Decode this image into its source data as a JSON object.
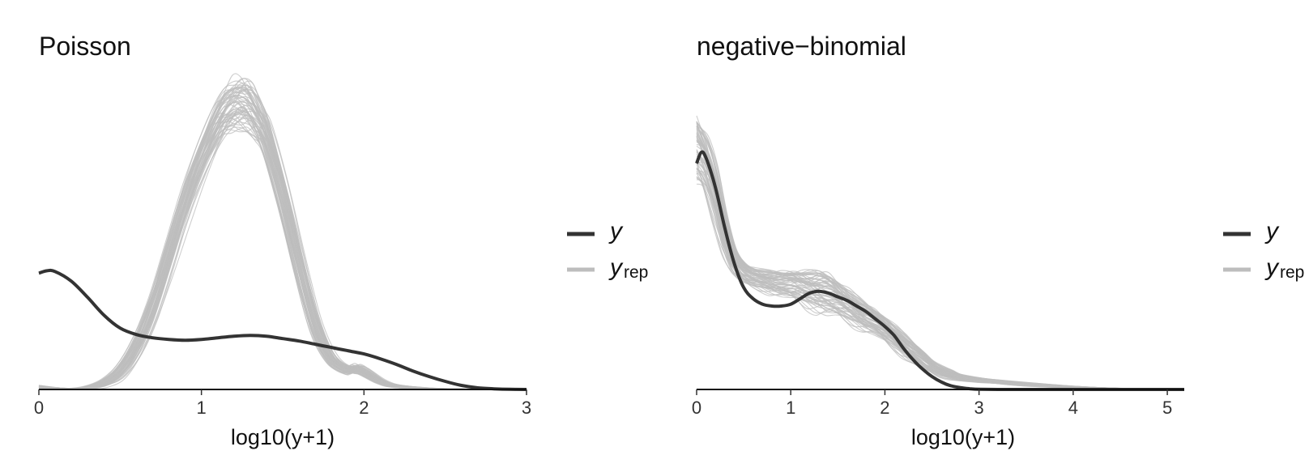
{
  "figure": {
    "legend": {
      "y_label": "y",
      "yrep_label": "y",
      "yrep_sub": "rep",
      "y_color": "#333333",
      "yrep_color": "#bdbdbd"
    }
  },
  "chart_data": [
    {
      "type": "line",
      "title": "Poisson",
      "xlabel": "log10(y+1)",
      "ylabel": "",
      "xlim": [
        0,
        3
      ],
      "ylim": [
        0,
        1.95
      ],
      "xticks": [
        0,
        1,
        2,
        3
      ],
      "xtick_labels": [
        "0",
        "1",
        "2",
        "3"
      ],
      "grid": false,
      "legend_position": "right",
      "series": [
        {
          "name": "y",
          "color": "#333333",
          "x": [
            0,
            0.05,
            0.1,
            0.2,
            0.3,
            0.4,
            0.5,
            0.6,
            0.7,
            0.8,
            0.9,
            1.0,
            1.1,
            1.2,
            1.3,
            1.4,
            1.5,
            1.6,
            1.7,
            1.8,
            1.9,
            2.0,
            2.1,
            2.2,
            2.3,
            2.4,
            2.5,
            2.6,
            2.7,
            2.8,
            2.9,
            3.0
          ],
          "y": [
            0.72,
            0.735,
            0.73,
            0.67,
            0.57,
            0.46,
            0.38,
            0.34,
            0.32,
            0.31,
            0.305,
            0.31,
            0.32,
            0.33,
            0.335,
            0.33,
            0.315,
            0.3,
            0.28,
            0.26,
            0.24,
            0.22,
            0.19,
            0.155,
            0.115,
            0.08,
            0.05,
            0.025,
            0.01,
            0.004,
            0.001,
            0.0
          ]
        }
      ],
      "replicates": {
        "name": "y_rep",
        "color": "#bdbdbd",
        "count": 60,
        "x": [
          0,
          0.1,
          0.2,
          0.3,
          0.4,
          0.5,
          0.6,
          0.7,
          0.8,
          0.9,
          1.0,
          1.1,
          1.15,
          1.2,
          1.25,
          1.3,
          1.35,
          1.4,
          1.5,
          1.6,
          1.7,
          1.8,
          1.9,
          1.95,
          2.0,
          2.1,
          2.2,
          2.4,
          2.6,
          2.8,
          3.0
        ],
        "y_mean": [
          0.015,
          0.006,
          0.003,
          0.01,
          0.04,
          0.11,
          0.26,
          0.5,
          0.82,
          1.15,
          1.42,
          1.64,
          1.72,
          1.76,
          1.77,
          1.74,
          1.66,
          1.56,
          1.2,
          0.78,
          0.4,
          0.19,
          0.12,
          0.13,
          0.11,
          0.05,
          0.02,
          0.006,
          0.002,
          0.0,
          0.0
        ],
        "y_spread": [
          0.01,
          0.005,
          0.004,
          0.01,
          0.02,
          0.04,
          0.06,
          0.08,
          0.09,
          0.1,
          0.11,
          0.13,
          0.14,
          0.15,
          0.15,
          0.14,
          0.12,
          0.11,
          0.09,
          0.07,
          0.05,
          0.03,
          0.025,
          0.025,
          0.02,
          0.01,
          0.008,
          0.003,
          0.001,
          0.0,
          0.0
        ]
      }
    },
    {
      "type": "line",
      "title": "negative−binomial",
      "xlabel": "log10(y+1)",
      "ylabel": "",
      "xlim": [
        0,
        5.18
      ],
      "ylim": [
        0,
        1.7
      ],
      "xticks": [
        0,
        1,
        2,
        3,
        4,
        5
      ],
      "xtick_labels": [
        "0",
        "1",
        "2",
        "3",
        "4",
        "5"
      ],
      "grid": false,
      "legend_position": "right",
      "series": [
        {
          "name": "y",
          "color": "#333333",
          "x": [
            0,
            0.05,
            0.1,
            0.2,
            0.3,
            0.4,
            0.5,
            0.6,
            0.7,
            0.8,
            0.9,
            1.0,
            1.1,
            1.2,
            1.3,
            1.4,
            1.5,
            1.6,
            1.7,
            1.8,
            1.9,
            2.0,
            2.1,
            2.2,
            2.3,
            2.4,
            2.5,
            2.6,
            2.7,
            2.8,
            2.9,
            3.0,
            3.2,
            3.5,
            4.0,
            5.18
          ],
          "y": [
            1.22,
            1.28,
            1.25,
            1.09,
            0.87,
            0.68,
            0.55,
            0.49,
            0.46,
            0.45,
            0.45,
            0.46,
            0.49,
            0.52,
            0.53,
            0.52,
            0.5,
            0.48,
            0.45,
            0.42,
            0.38,
            0.34,
            0.29,
            0.22,
            0.16,
            0.11,
            0.07,
            0.04,
            0.02,
            0.01,
            0.004,
            0.001,
            0.0,
            0.0,
            0.0,
            0.0
          ]
        }
      ],
      "replicates": {
        "name": "y_rep",
        "color": "#bdbdbd",
        "count": 60,
        "x": [
          0,
          0.1,
          0.2,
          0.3,
          0.4,
          0.5,
          0.6,
          0.7,
          0.8,
          0.9,
          1.0,
          1.1,
          1.2,
          1.3,
          1.4,
          1.5,
          1.6,
          1.7,
          1.8,
          1.9,
          2.0,
          2.1,
          2.2,
          2.3,
          2.4,
          2.5,
          2.6,
          2.7,
          2.8,
          3.0,
          3.2,
          3.5,
          4.0,
          4.5,
          5.18
        ],
        "y_mean": [
          1.28,
          1.2,
          1.05,
          0.85,
          0.7,
          0.63,
          0.6,
          0.59,
          0.58,
          0.57,
          0.56,
          0.55,
          0.54,
          0.53,
          0.51,
          0.48,
          0.45,
          0.42,
          0.39,
          0.36,
          0.32,
          0.28,
          0.24,
          0.2,
          0.16,
          0.12,
          0.095,
          0.08,
          0.065,
          0.05,
          0.04,
          0.028,
          0.013,
          0.004,
          0.0
        ],
        "y_spread": [
          0.17,
          0.15,
          0.13,
          0.09,
          0.06,
          0.05,
          0.05,
          0.05,
          0.055,
          0.06,
          0.07,
          0.08,
          0.09,
          0.1,
          0.1,
          0.09,
          0.08,
          0.07,
          0.065,
          0.06,
          0.06,
          0.055,
          0.05,
          0.045,
          0.04,
          0.03,
          0.025,
          0.02,
          0.015,
          0.012,
          0.01,
          0.008,
          0.004,
          0.002,
          0.0
        ]
      }
    }
  ]
}
